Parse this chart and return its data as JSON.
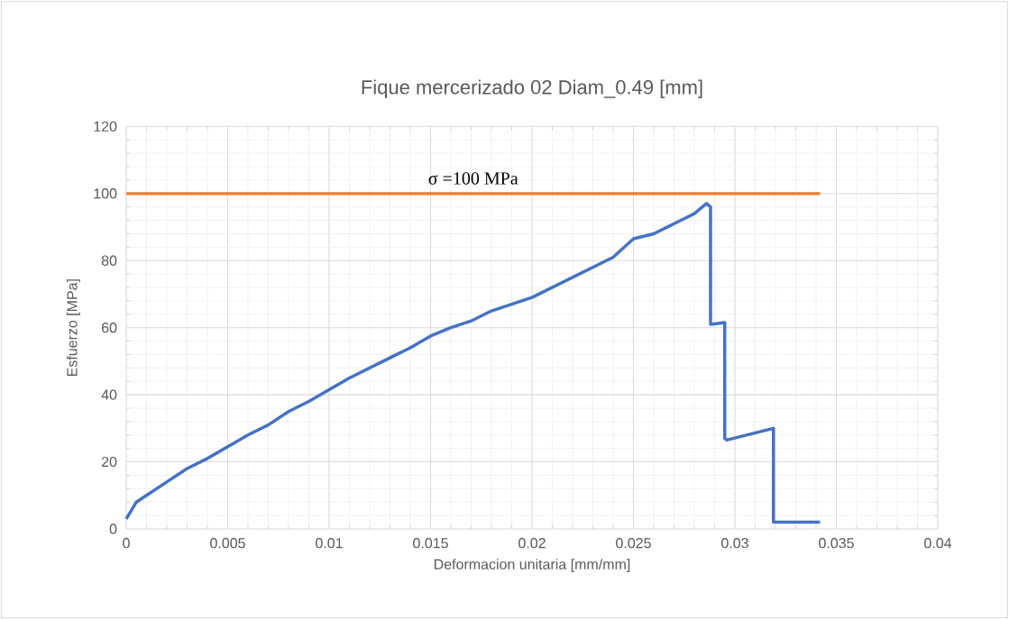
{
  "chart_data": {
    "type": "line",
    "title": "Fique mercerizado 02 Diam_0.49 [mm]",
    "xlabel": "Deformacion unitaria [mm/mm]",
    "ylabel": "Esfuerzo [MPa]",
    "x": [
      0,
      0.0005,
      0.001,
      0.002,
      0.003,
      0.004,
      0.005,
      0.006,
      0.007,
      0.008,
      0.009,
      0.01,
      0.011,
      0.012,
      0.013,
      0.014,
      0.015,
      0.016,
      0.017,
      0.018,
      0.019,
      0.02,
      0.021,
      0.022,
      0.023,
      0.024,
      0.025,
      0.026,
      0.027,
      0.028,
      0.0286,
      0.0288,
      0.0288,
      0.0295,
      0.0295,
      0.0296,
      0.0319,
      0.0319,
      0.032,
      0.0342
    ],
    "series": [
      {
        "color": "#4472c4",
        "values": [
          3,
          8,
          10,
          14,
          18,
          21,
          24.5,
          28,
          31,
          35,
          38,
          41.5,
          45,
          48,
          51,
          54,
          57.5,
          60,
          62,
          65,
          67,
          69,
          72,
          75,
          78,
          81,
          86.5,
          88,
          91,
          94,
          97,
          96,
          61,
          61.5,
          27,
          26.5,
          30,
          2,
          2,
          2
        ]
      }
    ],
    "xlim": [
      0,
      0.04
    ],
    "ylim": [
      0,
      120
    ],
    "xticks": [
      0,
      0.005,
      0.01,
      0.015,
      0.02,
      0.025,
      0.03,
      0.035,
      0.04
    ],
    "yticks": [
      0,
      20,
      40,
      60,
      80,
      100,
      120
    ],
    "grid": true,
    "marker": "none",
    "line_style": "solid",
    "ref_lines": [
      {
        "axis": "y",
        "value": 100,
        "label": "σ =100 MPa",
        "color": "#ed7d31",
        "line_style": "solid"
      }
    ]
  }
}
